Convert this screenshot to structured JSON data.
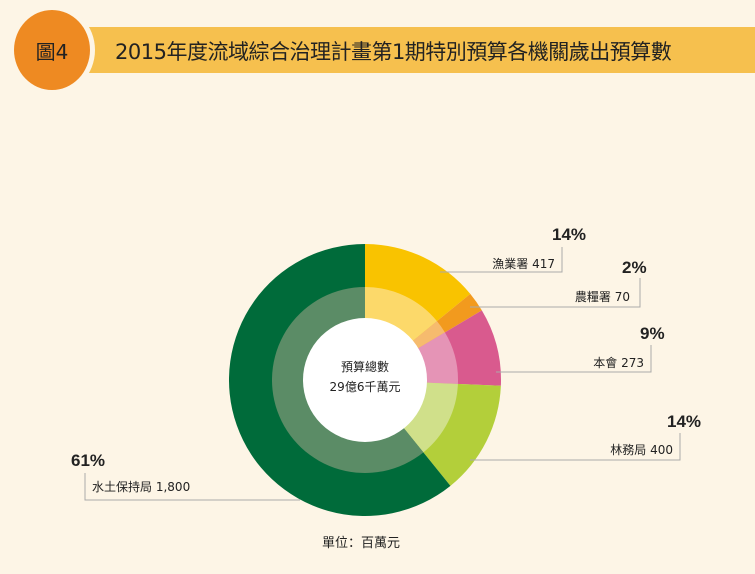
{
  "header": {
    "badge": "圖4",
    "title": "2015年度流域綜合治理計畫第1期特別預算各機關歲出預算數"
  },
  "colors": {
    "background": "#fdf5e6",
    "title_bar": "#f6c04e",
    "badge": "#ee8a22"
  },
  "chart_data": {
    "type": "pie",
    "style": "donut",
    "title": "2015年度流域綜合治理計畫第1期特別預算各機關歲出預算數",
    "center_label": {
      "line1": "預算總數",
      "line2": "29億6千萬元"
    },
    "unit_note": "單位：百萬元",
    "slices": [
      {
        "name": "漁業署",
        "value": 417,
        "value_label": "417",
        "percent": "14%",
        "color": "#f9c300",
        "inner_color": "#fcd96a"
      },
      {
        "name": "農糧署",
        "value": 70,
        "value_label": "70",
        "percent": "2%",
        "color": "#f29a1e",
        "inner_color": "#f6bb6e"
      },
      {
        "name": "本會",
        "value": 273,
        "value_label": "273",
        "percent": "9%",
        "color": "#d95a8e",
        "inner_color": "#e594b6"
      },
      {
        "name": "林務局",
        "value": 400,
        "value_label": "400",
        "percent": "14%",
        "color": "#b3cf3a",
        "inner_color": "#d0e08a"
      },
      {
        "name": "水土保持局",
        "value": 1800,
        "value_label": "1,800",
        "percent": "61%",
        "color": "#006b3a",
        "inner_color": "#5b8c66"
      }
    ]
  }
}
